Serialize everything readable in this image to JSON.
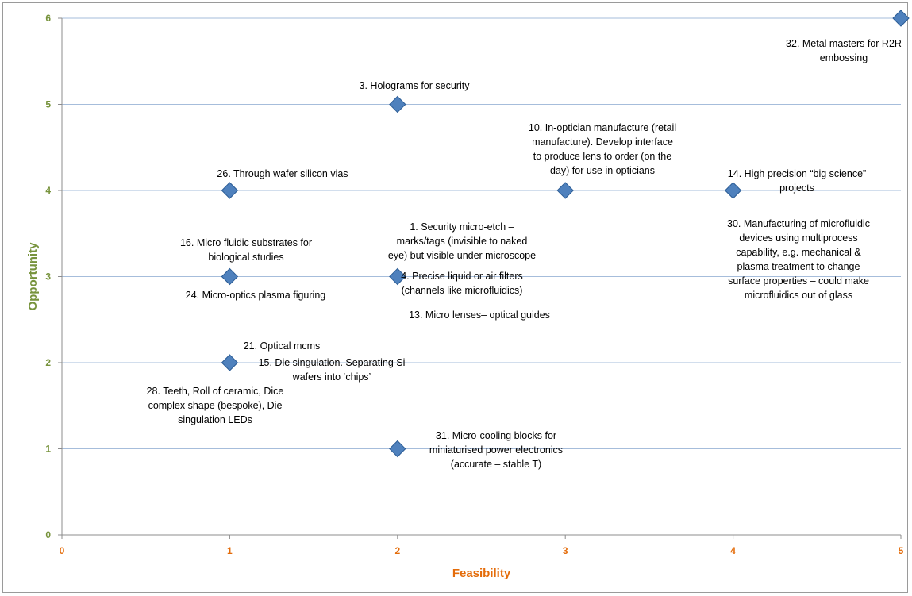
{
  "colors": {
    "y_axis_text": "#77933c",
    "x_axis_text": "#e46c0a",
    "gridline": "#a6bddb",
    "marker": "#4f81bd",
    "marker_edge": "#2c5d96"
  },
  "chart_data": {
    "type": "scatter",
    "xlabel": "Feasibility",
    "ylabel": "Opportunity",
    "xlim": [
      0,
      5
    ],
    "ylim": [
      0,
      6
    ],
    "x_ticks": [
      "0",
      "1",
      "2",
      "3",
      "4",
      "5"
    ],
    "y_ticks": [
      "0",
      "1",
      "2",
      "3",
      "4",
      "5",
      "6"
    ],
    "grid": "horizontal",
    "marker": "diamond",
    "points": [
      {
        "x": 5,
        "y": 6
      },
      {
        "x": 2,
        "y": 5
      },
      {
        "x": 1,
        "y": 4
      },
      {
        "x": 3,
        "y": 4
      },
      {
        "x": 4,
        "y": 4
      },
      {
        "x": 1,
        "y": 3
      },
      {
        "x": 2,
        "y": 3
      },
      {
        "x": 1,
        "y": 2
      },
      {
        "x": 2,
        "y": 1
      }
    ],
    "annotations": [
      {
        "lines": [
          "32. Metal masters for R2R",
          "embossing"
        ]
      },
      {
        "lines": [
          "3. Holograms for security"
        ]
      },
      {
        "lines": [
          "10. In-optician manufacture (retail",
          "manufacture).  Develop interface",
          "to produce lens to order (on the",
          "day) for use in opticians"
        ]
      },
      {
        "lines": [
          "26. Through wafer silicon vias"
        ]
      },
      {
        "lines": [
          "14. High precision “big science”",
          "projects"
        ]
      },
      {
        "lines": [
          "30. Manufacturing of microfluidic",
          "devices using multiprocess",
          "capability, e.g. mechanical &",
          "plasma treatment to change",
          "surface properties – could make",
          "microfluidics out of glass"
        ]
      },
      {
        "lines": [
          "1. Security micro-etch –",
          "marks/tags (invisible to naked",
          "eye) but visible under microscope"
        ]
      },
      {
        "lines": [
          "16. Micro fluidic substrates for",
          "biological studies"
        ]
      },
      {
        "lines": [
          "4. Precise liquid or air filters",
          "(channels like microfluidics)"
        ]
      },
      {
        "lines": [
          "24. Micro-optics plasma figuring"
        ]
      },
      {
        "lines": [
          "13. Micro  lenses– optical guides"
        ]
      },
      {
        "lines": [
          "21. Optical mcms"
        ]
      },
      {
        "lines": [
          "15. Die singulation.  Separating Si",
          "wafers into ‘chips’"
        ]
      },
      {
        "lines": [
          "28. Teeth, Roll of ceramic, Dice",
          "complex shape (bespoke), Die",
          "singulation LEDs"
        ]
      },
      {
        "lines": [
          "31. Micro-cooling blocks for",
          "miniaturised power electronics",
          "(accurate – stable T)"
        ]
      }
    ]
  }
}
